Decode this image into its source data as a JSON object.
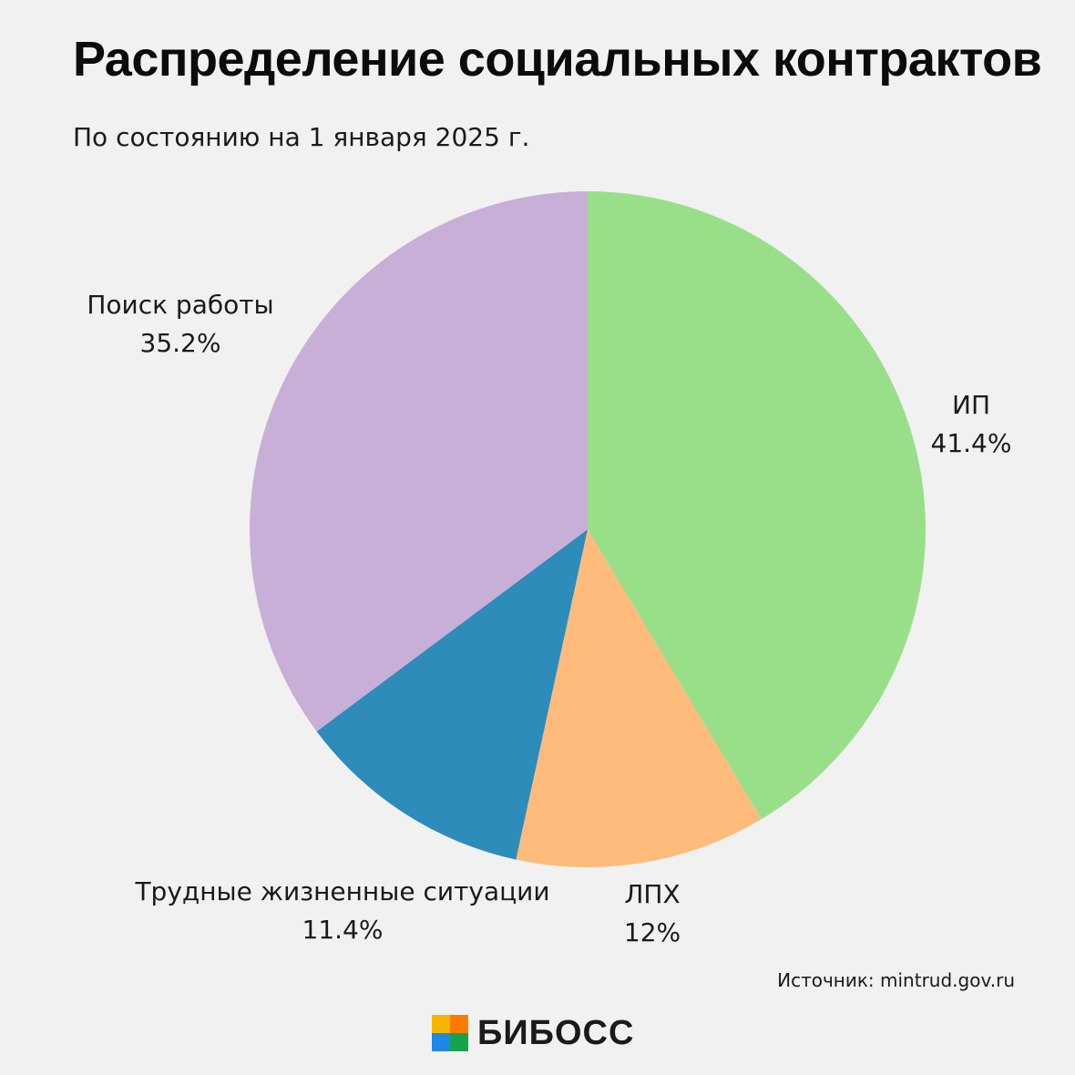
{
  "header": {
    "title": "Распределение социальных контрактов",
    "subtitle": "По состоянию на 1 января 2025 г."
  },
  "chart_data": {
    "type": "pie",
    "title": "Распределение социальных контрактов",
    "subtitle": "По состоянию на 1 января 2025 г.",
    "slices": [
      {
        "label": "ИП",
        "value": 41.4,
        "value_label": "41.4%",
        "color": "#99df8a"
      },
      {
        "label": "ЛПХ",
        "value": 12,
        "value_label": "12%",
        "color": "#febb7c"
      },
      {
        "label": "Трудные жизненные ситуации",
        "value": 11.4,
        "value_label": "11.4%",
        "color": "#2e8cba"
      },
      {
        "label": "Поиск работы",
        "value": 35.2,
        "value_label": "35.2%",
        "color": "#c8afd7"
      }
    ],
    "start": "12 o'clock",
    "direction": "clockwise",
    "legend": "none"
  },
  "footer": {
    "source": "Источник: mintrud.gov.ru",
    "brand": "БИБОСС",
    "brand_icon": "bibos-logo-icon",
    "brand_colors": [
      "#f7b500",
      "#ff7a00",
      "#17a34a",
      "#1e88e5"
    ]
  }
}
